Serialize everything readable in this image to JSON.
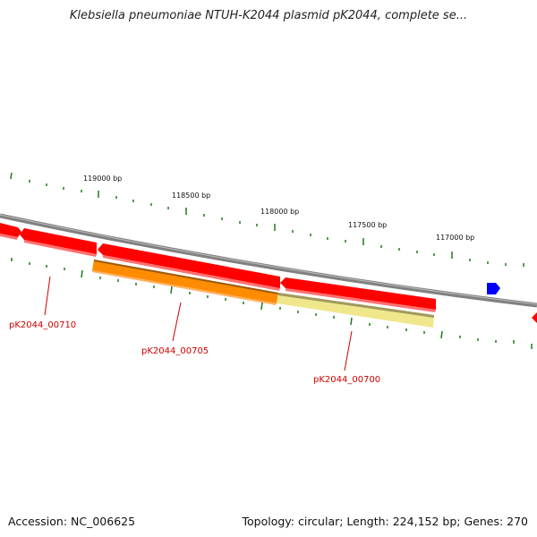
{
  "title": "Klebsiella pneumoniae NTUH-K2044 plasmid pK2044, complete se...",
  "accession_label": "Accession: NC_006625",
  "summary_label": "Topology: circular; Length: 224,152 bp; Genes: 270",
  "scale_labels": [
    "119000 bp",
    "118500 bp",
    "118000 bp",
    "117500 bp",
    "117000 bp"
  ],
  "gene_labels": [
    "pK2044_00710",
    "pK2044_00705",
    "pK2044_00700"
  ],
  "colors": {
    "backbone": "#808080",
    "cds_red": "#ff0000",
    "gene_orange": "#ff8c00",
    "gene_pale_yellow": "#f0e68c",
    "tick_green": "#1a7a1a",
    "blue_feature": "#0000ff",
    "label_red": "#cc0000"
  }
}
